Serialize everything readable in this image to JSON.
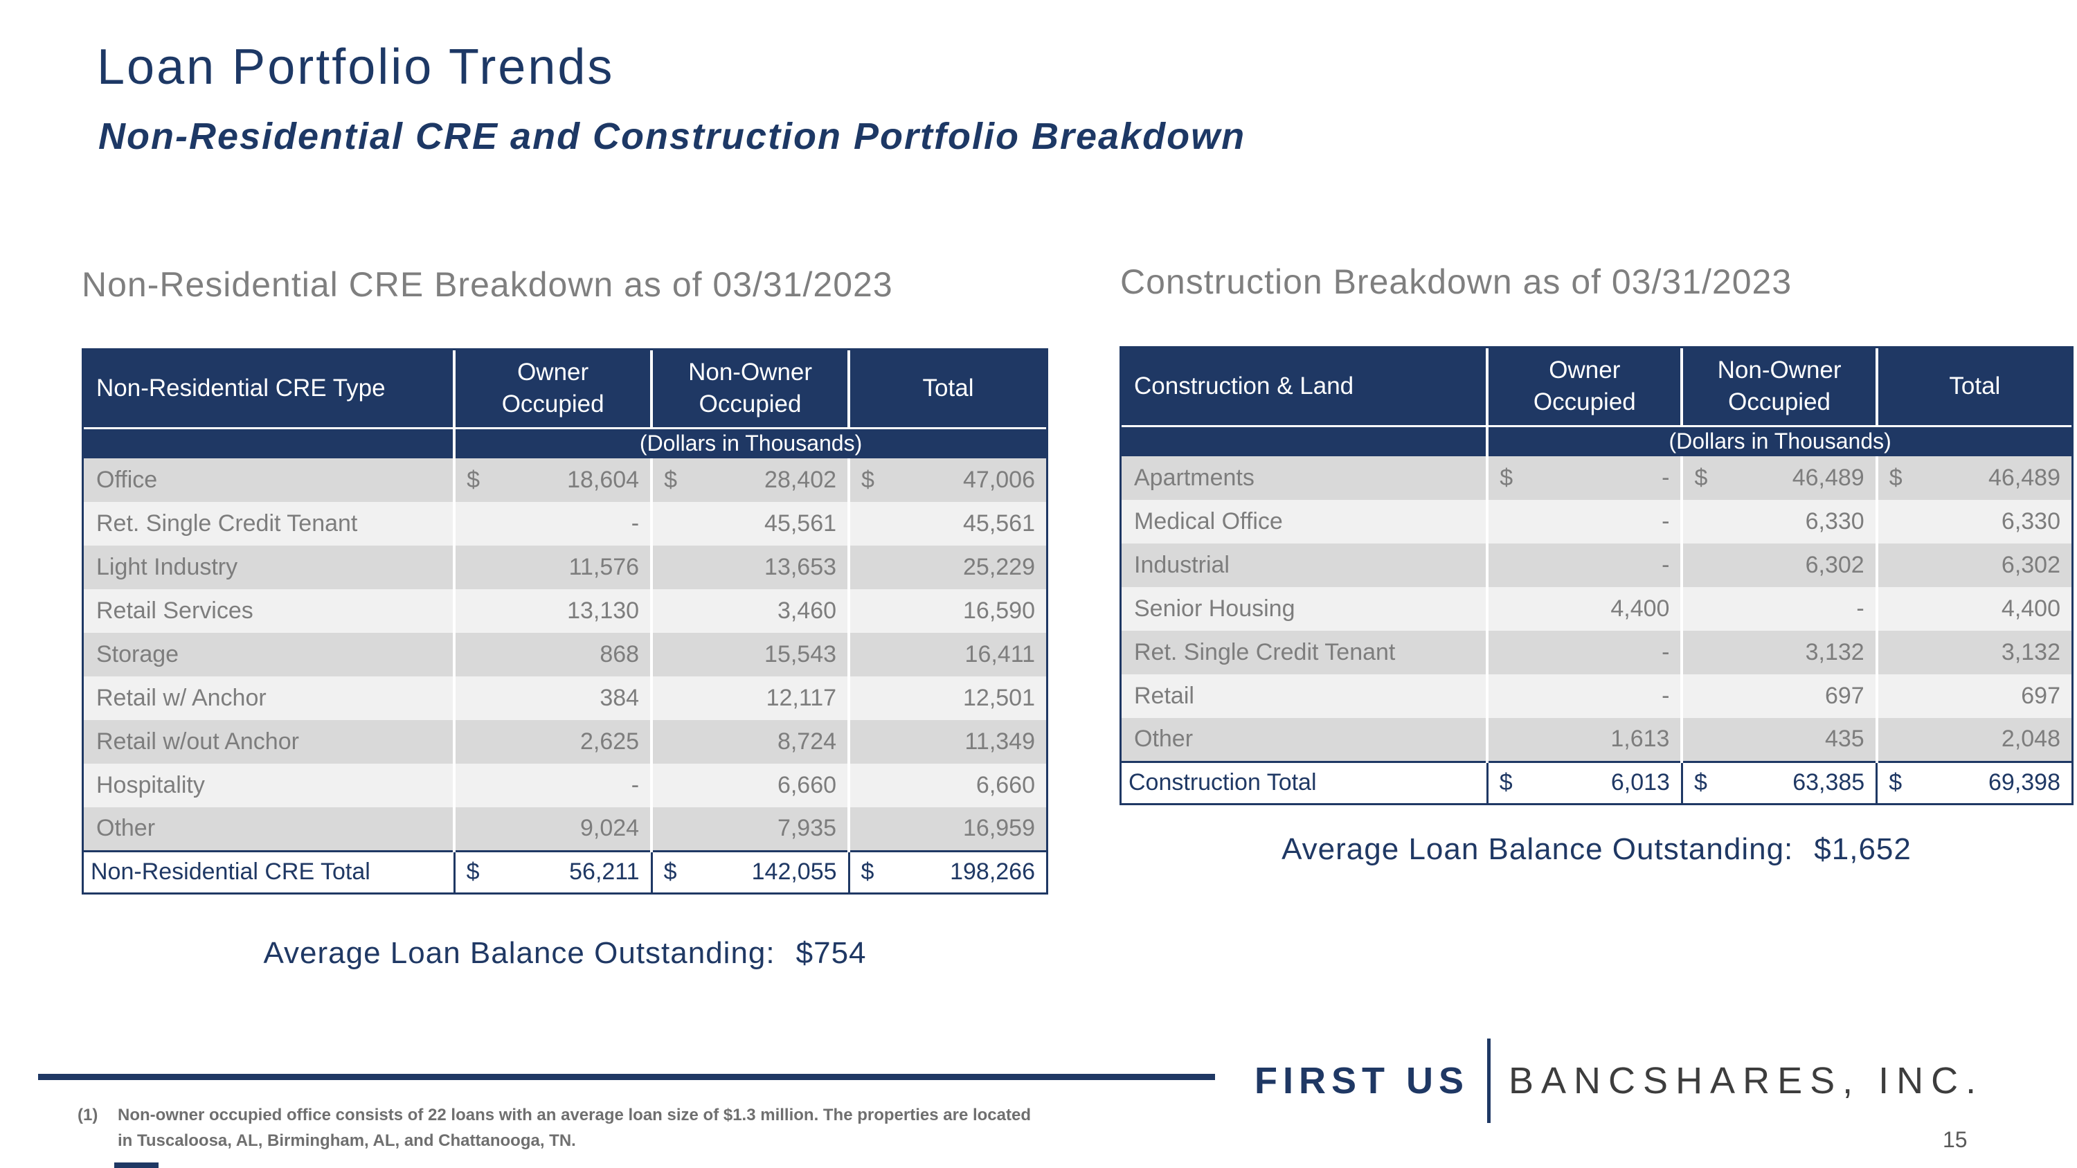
{
  "slide": {
    "title": "Loan Portfolio Trends",
    "subtitle": "Non-Residential CRE and Construction Portfolio Breakdown",
    "page_number": "15"
  },
  "colors": {
    "navy": "#1f3864",
    "body_text_gray": "#7d7d7d",
    "row_shade_dark": "#d9d9d9",
    "row_shade_light": "#f1f1f1"
  },
  "cre_table": {
    "section_title": "Non-Residential CRE Breakdown as of 03/31/2023",
    "headers": {
      "type": "Non-Residential CRE Type",
      "owner": "Owner\nOccupied",
      "non_owner": "Non-Owner\nOccupied",
      "total": "Total"
    },
    "units_note": "(Dollars in Thousands)",
    "rows": [
      {
        "label": "Office",
        "cells": [
          {
            "d": "$",
            "v": "18,604"
          },
          {
            "d": "$",
            "v": "28,402"
          },
          {
            "d": "$",
            "v": "47,006"
          }
        ]
      },
      {
        "label": "Ret. Single Credit Tenant",
        "cells": [
          {
            "d": "",
            "v": "-"
          },
          {
            "d": "",
            "v": "45,561"
          },
          {
            "d": "",
            "v": "45,561"
          }
        ]
      },
      {
        "label": "Light Industry",
        "cells": [
          {
            "d": "",
            "v": "11,576"
          },
          {
            "d": "",
            "v": "13,653"
          },
          {
            "d": "",
            "v": "25,229"
          }
        ]
      },
      {
        "label": "Retail Services",
        "cells": [
          {
            "d": "",
            "v": "13,130"
          },
          {
            "d": "",
            "v": "3,460"
          },
          {
            "d": "",
            "v": "16,590"
          }
        ]
      },
      {
        "label": "Storage",
        "cells": [
          {
            "d": "",
            "v": "868"
          },
          {
            "d": "",
            "v": "15,543"
          },
          {
            "d": "",
            "v": "16,411"
          }
        ]
      },
      {
        "label": "Retail w/ Anchor",
        "cells": [
          {
            "d": "",
            "v": "384"
          },
          {
            "d": "",
            "v": "12,117"
          },
          {
            "d": "",
            "v": "12,501"
          }
        ]
      },
      {
        "label": "Retail w/out Anchor",
        "cells": [
          {
            "d": "",
            "v": "2,625"
          },
          {
            "d": "",
            "v": "8,724"
          },
          {
            "d": "",
            "v": "11,349"
          }
        ]
      },
      {
        "label": "Hospitality",
        "cells": [
          {
            "d": "",
            "v": "-"
          },
          {
            "d": "",
            "v": "6,660"
          },
          {
            "d": "",
            "v": "6,660"
          }
        ]
      },
      {
        "label": "Other",
        "cells": [
          {
            "d": "",
            "v": "9,024"
          },
          {
            "d": "",
            "v": "7,935"
          },
          {
            "d": "",
            "v": "16,959"
          }
        ]
      }
    ],
    "total_row": {
      "label": "Non-Residential CRE Total",
      "cells": [
        {
          "d": "$",
          "v": "56,211"
        },
        {
          "d": "$",
          "v": "142,055"
        },
        {
          "d": "$",
          "v": "198,266"
        }
      ]
    },
    "avg_label": "Average Loan Balance Outstanding:",
    "avg_value": "$754"
  },
  "construction_table": {
    "section_title": "Construction Breakdown as of 03/31/2023",
    "headers": {
      "type": "Construction & Land",
      "owner": "Owner\nOccupied",
      "non_owner": "Non-Owner\nOccupied",
      "total": "Total"
    },
    "units_note": "(Dollars in Thousands)",
    "rows": [
      {
        "label": "Apartments",
        "cells": [
          {
            "d": "$",
            "v": "-"
          },
          {
            "d": "$",
            "v": "46,489"
          },
          {
            "d": "$",
            "v": "46,489"
          }
        ]
      },
      {
        "label": "Medical Office",
        "cells": [
          {
            "d": "",
            "v": "-"
          },
          {
            "d": "",
            "v": "6,330"
          },
          {
            "d": "",
            "v": "6,330"
          }
        ]
      },
      {
        "label": "Industrial",
        "cells": [
          {
            "d": "",
            "v": "-"
          },
          {
            "d": "",
            "v": "6,302"
          },
          {
            "d": "",
            "v": "6,302"
          }
        ]
      },
      {
        "label": "Senior Housing",
        "cells": [
          {
            "d": "",
            "v": "4,400"
          },
          {
            "d": "",
            "v": "-"
          },
          {
            "d": "",
            "v": "4,400"
          }
        ]
      },
      {
        "label": "Ret. Single Credit Tenant",
        "cells": [
          {
            "d": "",
            "v": "-"
          },
          {
            "d": "",
            "v": "3,132"
          },
          {
            "d": "",
            "v": "3,132"
          }
        ]
      },
      {
        "label": "Retail",
        "cells": [
          {
            "d": "",
            "v": "-"
          },
          {
            "d": "",
            "v": "697"
          },
          {
            "d": "",
            "v": "697"
          }
        ]
      },
      {
        "label": "Other",
        "cells": [
          {
            "d": "",
            "v": "1,613"
          },
          {
            "d": "",
            "v": "435"
          },
          {
            "d": "",
            "v": "2,048"
          }
        ]
      }
    ],
    "total_row": {
      "label": "Construction Total",
      "cells": [
        {
          "d": "$",
          "v": "6,013"
        },
        {
          "d": "$",
          "v": "63,385"
        },
        {
          "d": "$",
          "v": "69,398"
        }
      ]
    },
    "avg_label": "Average Loan Balance Outstanding:",
    "avg_value": "$1,652"
  },
  "footer": {
    "footnote_marker": "(1)",
    "footnote_line1": "Non-owner occupied office consists of 22 loans with an average loan size of $1.3 million. The properties are located",
    "footnote_line2": "in Tuscaloosa, AL, Birmingham, AL, and Chattanooga, TN.",
    "logo_primary": "FIRST US",
    "logo_secondary": "BANCSHARES, INC."
  }
}
